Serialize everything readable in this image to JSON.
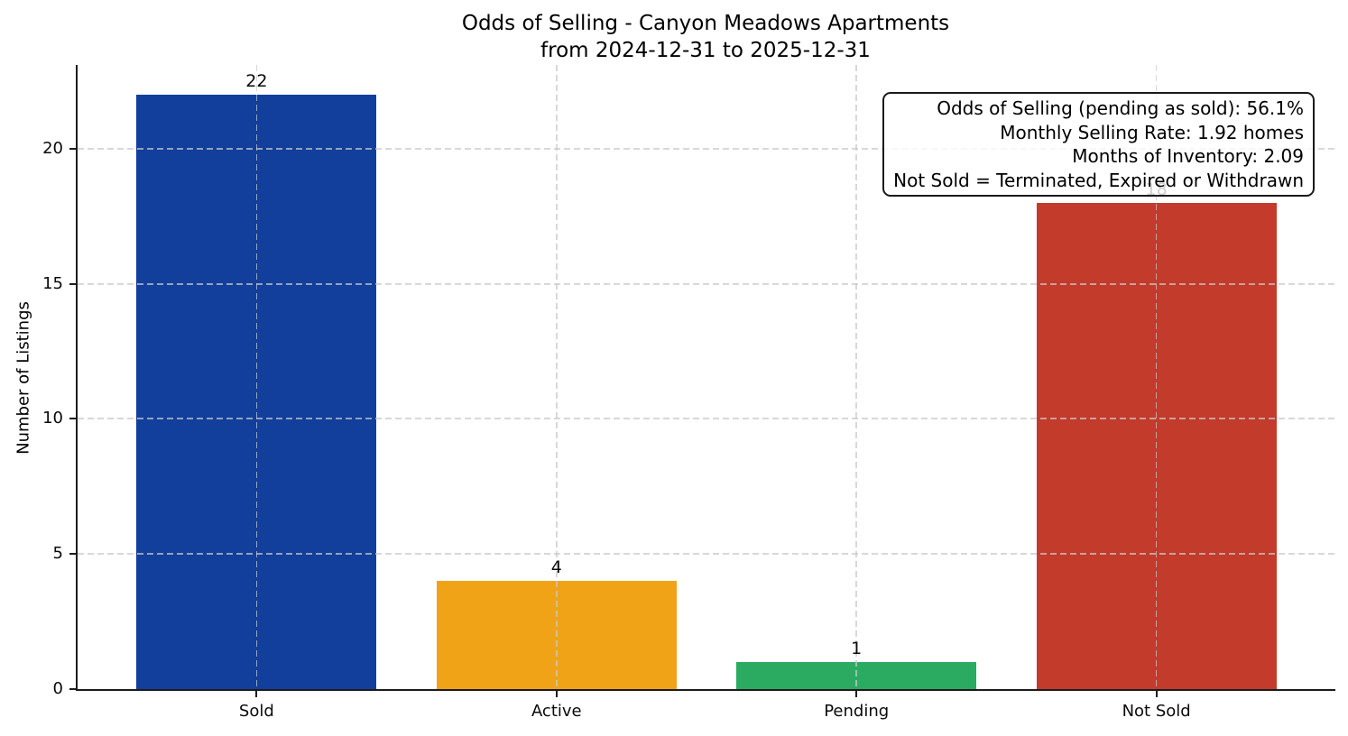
{
  "chart_data": {
    "type": "bar",
    "title": "Odds of Selling - Canyon Meadows Apartments\nfrom 2024-12-31 to 2025-12-31",
    "categories": [
      "Sold",
      "Active",
      "Pending",
      "Not Sold"
    ],
    "values": [
      22,
      4,
      1,
      18
    ],
    "bar_colors": [
      "#123f9b",
      "#f0a317",
      "#2aab61",
      "#c23b2b"
    ],
    "xlabel": "",
    "ylabel": "Number of Listings",
    "ylim": [
      0,
      23.1
    ],
    "yticks": [
      0,
      5,
      10,
      15,
      20
    ],
    "grid": true,
    "grid_style": "dashed",
    "legend": "none",
    "annotation_box": {
      "position": "top-right",
      "align": "right",
      "lines": [
        "Odds of Selling (pending as sold): 56.1%",
        "Monthly Selling Rate: 1.92 homes",
        "Months of Inventory: 2.09",
        "Not Sold = Terminated, Expired or Withdrawn"
      ]
    }
  }
}
